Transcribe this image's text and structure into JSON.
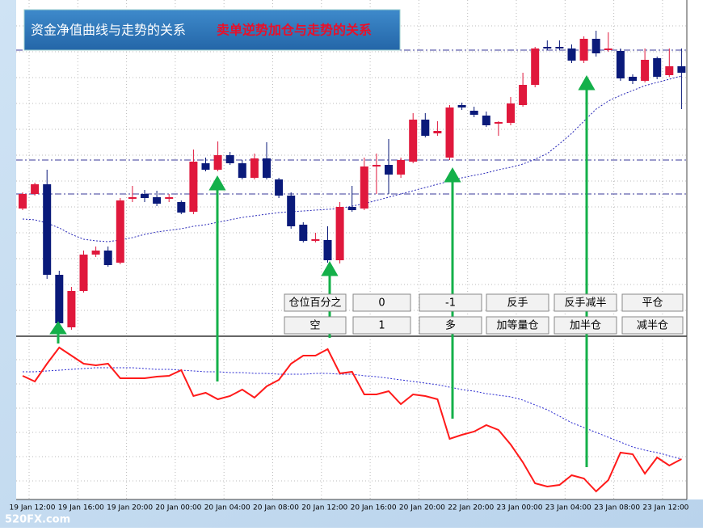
{
  "header": {
    "title": "资金净值曲线与走势的关系",
    "subtitle": "卖单逆势加仓与走势的关系"
  },
  "buttons": [
    [
      "仓位百分之",
      "0",
      "-1",
      "反手",
      "反手减半",
      "平仓"
    ],
    [
      "空",
      "1",
      "多",
      "加等量仓",
      "加半仓",
      "减半仓"
    ]
  ],
  "chart_data": [
    {
      "type": "candlestick",
      "ylim": [
        5,
        420
      ],
      "up_color": "#e0183c",
      "down_color": "#0a1a7a",
      "open": [
        162,
        180,
        192,
        80,
        15,
        60,
        105,
        110,
        95,
        174,
        180,
        176,
        174,
        170,
        158,
        218,
        210,
        228,
        218,
        200,
        224,
        198,
        178,
        142,
        122,
        123,
        98,
        164,
        162,
        214,
        216,
        204,
        220,
        272,
        255,
        225,
        290,
        283,
        277,
        267,
        268,
        290,
        315,
        362,
        362,
        360,
        345,
        372,
        358,
        357,
        325,
        320,
        348,
        327,
        338
      ],
      "close": [
        180,
        192,
        80,
        20,
        60,
        105,
        110,
        92,
        172,
        176,
        175,
        168,
        176,
        157,
        220,
        210,
        228,
        218,
        200,
        224,
        200,
        178,
        140,
        122,
        124,
        98,
        164,
        160,
        214,
        216,
        204,
        222,
        272,
        252,
        258,
        287,
        287,
        278,
        265,
        269,
        292,
        315,
        360,
        360,
        360,
        345,
        372,
        354,
        360,
        323,
        320,
        346,
        325,
        338,
        330
      ],
      "high": [
        182,
        194,
        210,
        85,
        65,
        110,
        115,
        115,
        175,
        190,
        185,
        184,
        180,
        172,
        235,
        225,
        245,
        232,
        222,
        230,
        244,
        200,
        182,
        145,
        132,
        140,
        170,
        190,
        225,
        230,
        248,
        225,
        280,
        280,
        270,
        290,
        293,
        288,
        282,
        270,
        300,
        330,
        362,
        370,
        370,
        365,
        375,
        382,
        380,
        360,
        328,
        360,
        350,
        360,
        360
      ],
      "low": [
        160,
        178,
        75,
        15,
        12,
        58,
        102,
        90,
        93,
        170,
        170,
        165,
        170,
        155,
        155,
        208,
        208,
        216,
        198,
        198,
        198,
        175,
        137,
        120,
        120,
        95,
        94,
        158,
        160,
        180,
        180,
        200,
        218,
        250,
        252,
        222,
        284,
        275,
        263,
        252,
        265,
        288,
        312,
        358,
        358,
        342,
        342,
        350,
        356,
        320,
        316,
        318,
        322,
        325,
        285
      ],
      "ma": {
        "color": "#2a2ab8",
        "values": [
          149,
          148,
          144,
          138,
          130,
          124,
          122,
          121,
          123,
          126,
          130,
          133,
          135,
          137,
          140,
          142,
          145,
          148,
          151,
          153,
          155,
          157,
          158,
          159,
          160,
          161,
          162,
          165,
          168,
          172,
          176,
          180,
          184,
          188,
          192,
          196,
          200,
          203,
          206,
          210,
          213,
          217,
          223,
          230,
          242,
          255,
          270,
          285,
          295,
          302,
          308,
          314,
          318,
          322,
          326
        ]
      },
      "levels": [
        358,
        222,
        180
      ],
      "level_color": "#3a3a9a"
    },
    {
      "type": "line",
      "ylim": [
        0,
        197
      ],
      "series": [
        {
          "color": "#ff1a1a",
          "values": [
            150,
            143,
            165,
            185,
            175,
            165,
            163,
            165,
            147,
            147,
            147,
            149,
            150,
            157,
            125,
            129,
            121,
            125,
            133,
            123,
            137,
            145,
            165,
            175,
            175,
            183,
            153,
            155,
            127,
            127,
            131,
            115,
            127,
            125,
            121,
            72,
            77,
            81,
            89,
            83,
            65,
            43,
            17,
            13,
            15,
            27,
            23,
            7,
            21,
            55,
            53,
            29,
            49,
            39,
            47
          ]
        },
        {
          "color": "#2a2ad0",
          "values": [
            155,
            155,
            156,
            157,
            158,
            159,
            160,
            160,
            160,
            160,
            159,
            158,
            158,
            157,
            156,
            155,
            155,
            154,
            154,
            153,
            153,
            152,
            152,
            152,
            153,
            153,
            152,
            152,
            150,
            149,
            147,
            145,
            143,
            141,
            139,
            136,
            133,
            131,
            128,
            126,
            124,
            120,
            114,
            108,
            100,
            92,
            86,
            80,
            74,
            68,
            62,
            58,
            55,
            51,
            47
          ]
        }
      ],
      "time_labels": [
        "19 Jan 12:00",
        "19 Jan 16:00",
        "19 Jan 20:00",
        "20 Jan 00:00",
        "20 Jan 04:00",
        "20 Jan 08:00",
        "20 Jan 12:00",
        "20 Jan 16:00",
        "20 Jan 20:00",
        "22 Jan 20:00",
        "23 Jan 00:00",
        "23 Jan 04:00",
        "23 Jan 08:00",
        "23 Jan 12:00"
      ]
    }
  ],
  "watermark": "520FX.com"
}
